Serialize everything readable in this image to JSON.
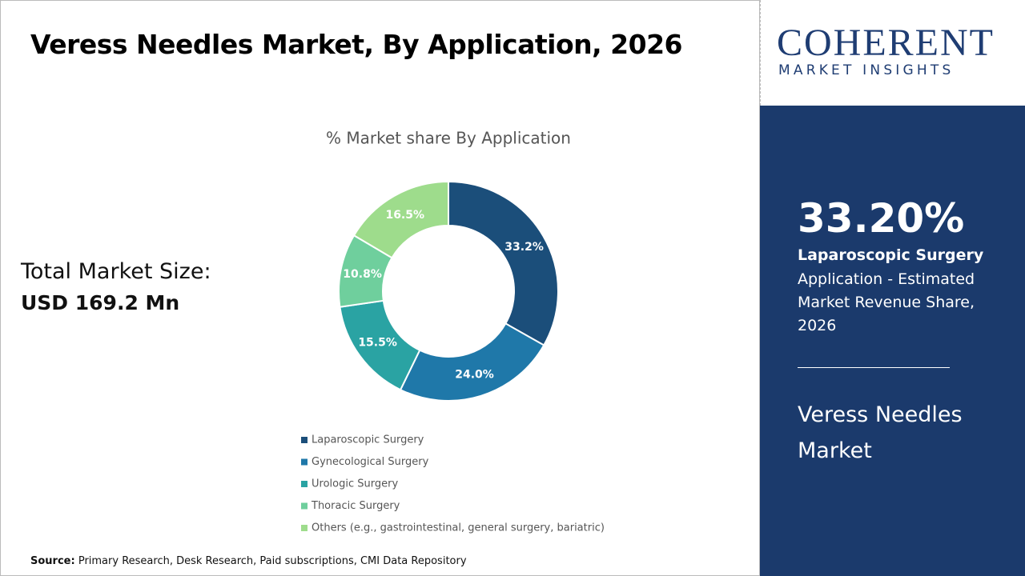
{
  "header": {
    "title": "Veress Needles Market, By Application, 2026"
  },
  "market_size": {
    "label": "Total Market Size:",
    "value": "USD 169.2 Mn"
  },
  "logo": {
    "name": "COHERENT",
    "tagline": "MARKET INSIGHTS"
  },
  "sidebar": {
    "highlight": "33.20%",
    "segment": "Laparoscopic Surgery",
    "description": "Application - Estimated Market Revenue Share, 2026",
    "market": "Veress Needles Market"
  },
  "source": {
    "label": "Source:",
    "text": "Primary Research, Desk Research, Paid subscriptions, CMI Data Repository"
  },
  "chart_data": {
    "type": "donut",
    "title": "% Market share By Application",
    "categories": [
      "Laparoscopic Surgery",
      "Gynecological Surgery",
      "Urologic Surgery",
      "Thoracic Surgery",
      "Others (e.g., gastrointestinal, general surgery, bariatric)"
    ],
    "values": [
      33.2,
      24.0,
      15.5,
      10.8,
      16.5
    ],
    "value_labels": [
      "33.2%",
      "24.0%",
      "15.5%",
      "10.8%",
      "16.5%"
    ],
    "colors": [
      "#1b4e7a",
      "#1f78a9",
      "#2aa3a3",
      "#6fcf9d",
      "#9edc8c"
    ]
  }
}
